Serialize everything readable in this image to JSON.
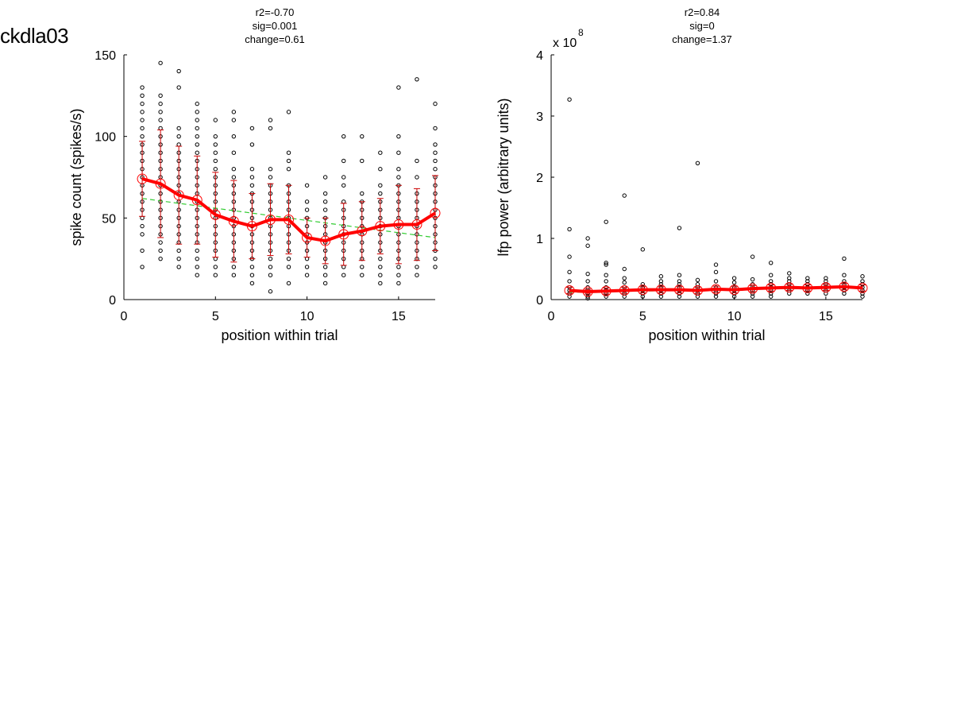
{
  "page": {
    "title": "ckdla03"
  },
  "chart_data": [
    {
      "type": "scatter",
      "stats": [
        "r2=-0.70",
        "sig=0.001",
        "change=0.61"
      ],
      "xlabel": "position within trial",
      "ylabel": "spike count (spikes/s)",
      "xlim": [
        0,
        17
      ],
      "ylim": [
        0,
        150
      ],
      "xticks": [
        0,
        5,
        10,
        15
      ],
      "yticks": [
        0,
        50,
        100,
        150
      ],
      "y_exponent_label": "",
      "y_exponent": "",
      "colors": {
        "points": "#000000",
        "mean": "#ff0000",
        "errorbar": "#cc0000",
        "fit": "#33cc33"
      },
      "points": [
        {
          "x": 1,
          "y": [
            20,
            30,
            40,
            45,
            50,
            55,
            60,
            65,
            70,
            75,
            80,
            85,
            90,
            95,
            100,
            105,
            110,
            115,
            120,
            125,
            130
          ]
        },
        {
          "x": 2,
          "y": [
            25,
            30,
            35,
            40,
            45,
            50,
            55,
            60,
            65,
            70,
            75,
            80,
            85,
            90,
            95,
            100,
            105,
            110,
            115,
            120,
            125,
            145
          ]
        },
        {
          "x": 3,
          "y": [
            20,
            25,
            30,
            35,
            40,
            45,
            50,
            55,
            60,
            65,
            70,
            75,
            80,
            85,
            90,
            95,
            100,
            105,
            130,
            140
          ]
        },
        {
          "x": 4,
          "y": [
            15,
            20,
            25,
            30,
            35,
            40,
            45,
            50,
            55,
            60,
            65,
            70,
            75,
            80,
            85,
            90,
            95,
            100,
            105,
            110,
            115,
            120
          ]
        },
        {
          "x": 5,
          "y": [
            15,
            20,
            25,
            30,
            35,
            40,
            45,
            50,
            55,
            60,
            65,
            70,
            75,
            80,
            85,
            90,
            95,
            100,
            110
          ]
        },
        {
          "x": 6,
          "y": [
            15,
            20,
            25,
            30,
            35,
            40,
            45,
            50,
            55,
            60,
            65,
            70,
            75,
            80,
            90,
            100,
            110,
            115
          ]
        },
        {
          "x": 7,
          "y": [
            10,
            15,
            20,
            25,
            30,
            35,
            40,
            45,
            50,
            55,
            60,
            65,
            70,
            75,
            80,
            95,
            105
          ]
        },
        {
          "x": 8,
          "y": [
            5,
            15,
            20,
            25,
            30,
            35,
            40,
            45,
            50,
            55,
            60,
            65,
            70,
            75,
            80,
            105,
            110
          ]
        },
        {
          "x": 9,
          "y": [
            10,
            20,
            25,
            30,
            35,
            40,
            45,
            50,
            55,
            60,
            65,
            70,
            80,
            85,
            90,
            115
          ]
        },
        {
          "x": 10,
          "y": [
            15,
            20,
            25,
            30,
            35,
            40,
            45,
            50,
            55,
            60,
            70
          ]
        },
        {
          "x": 11,
          "y": [
            10,
            15,
            20,
            25,
            30,
            35,
            40,
            45,
            50,
            55,
            60,
            65,
            75
          ]
        },
        {
          "x": 12,
          "y": [
            15,
            20,
            25,
            30,
            35,
            40,
            45,
            50,
            55,
            60,
            70,
            75,
            85,
            100
          ]
        },
        {
          "x": 13,
          "y": [
            15,
            20,
            25,
            30,
            35,
            40,
            45,
            50,
            55,
            60,
            65,
            85,
            100
          ]
        },
        {
          "x": 14,
          "y": [
            10,
            15,
            20,
            25,
            30,
            35,
            40,
            45,
            50,
            55,
            60,
            65,
            70,
            80,
            90
          ]
        },
        {
          "x": 15,
          "y": [
            10,
            15,
            20,
            25,
            30,
            35,
            40,
            45,
            50,
            55,
            60,
            65,
            70,
            75,
            80,
            90,
            100,
            130
          ]
        },
        {
          "x": 16,
          "y": [
            15,
            20,
            25,
            30,
            35,
            40,
            45,
            50,
            55,
            60,
            65,
            75,
            85,
            135
          ]
        },
        {
          "x": 17,
          "y": [
            20,
            25,
            30,
            35,
            40,
            45,
            50,
            55,
            60,
            65,
            70,
            75,
            80,
            85,
            90,
            95,
            105,
            120
          ]
        }
      ],
      "mean": {
        "x": [
          1,
          2,
          3,
          4,
          5,
          6,
          7,
          8,
          9,
          10,
          11,
          12,
          13,
          14,
          15,
          16,
          17
        ],
        "y": [
          74,
          71,
          64,
          61,
          52,
          48,
          45,
          49,
          49,
          38,
          36,
          40,
          42,
          45,
          46,
          46,
          53
        ],
        "sd": [
          23,
          33,
          30,
          27,
          26,
          25,
          20,
          22,
          21,
          12,
          14,
          19,
          18,
          17,
          24,
          22,
          23
        ]
      },
      "fit": {
        "x": [
          1,
          17
        ],
        "y": [
          62,
          38
        ]
      }
    },
    {
      "type": "scatter",
      "stats": [
        "r2=0.84",
        "sig=0",
        "change=1.37"
      ],
      "xlabel": "position within trial",
      "ylabel": "lfp power (arbitrary units)",
      "xlim": [
        0,
        17
      ],
      "ylim": [
        0,
        4
      ],
      "xticks": [
        0,
        5,
        10,
        15
      ],
      "yticks": [
        0,
        1,
        2,
        3,
        4
      ],
      "y_exponent_label": "x 10",
      "y_exponent": "8",
      "colors": {
        "points": "#000000",
        "mean": "#ff0000",
        "errorbar": "#cc0000",
        "fit": "#33cc33"
      },
      "points": [
        {
          "x": 1,
          "y": [
            0.05,
            0.1,
            0.15,
            0.2,
            0.3,
            0.45,
            0.7,
            1.15,
            3.27
          ]
        },
        {
          "x": 2,
          "y": [
            0.02,
            0.05,
            0.1,
            0.15,
            0.2,
            0.3,
            0.42,
            0.88,
            1.0
          ]
        },
        {
          "x": 3,
          "y": [
            0.05,
            0.1,
            0.15,
            0.2,
            0.3,
            0.4,
            0.57,
            0.6,
            1.27
          ]
        },
        {
          "x": 4,
          "y": [
            0.05,
            0.1,
            0.15,
            0.2,
            0.28,
            0.35,
            0.5,
            1.7
          ]
        },
        {
          "x": 5,
          "y": [
            0.05,
            0.1,
            0.15,
            0.2,
            0.25,
            0.82
          ]
        },
        {
          "x": 6,
          "y": [
            0.05,
            0.1,
            0.15,
            0.2,
            0.25,
            0.3,
            0.38
          ]
        },
        {
          "x": 7,
          "y": [
            0.05,
            0.1,
            0.15,
            0.2,
            0.25,
            0.3,
            0.4,
            1.17
          ]
        },
        {
          "x": 8,
          "y": [
            0.05,
            0.1,
            0.15,
            0.2,
            0.25,
            0.32,
            2.23
          ]
        },
        {
          "x": 9,
          "y": [
            0.05,
            0.1,
            0.15,
            0.2,
            0.3,
            0.45,
            0.57
          ]
        },
        {
          "x": 10,
          "y": [
            0.05,
            0.1,
            0.15,
            0.2,
            0.28,
            0.35
          ]
        },
        {
          "x": 11,
          "y": [
            0.05,
            0.1,
            0.15,
            0.2,
            0.25,
            0.33,
            0.7
          ]
        },
        {
          "x": 12,
          "y": [
            0.05,
            0.1,
            0.15,
            0.2,
            0.25,
            0.3,
            0.4,
            0.6
          ]
        },
        {
          "x": 13,
          "y": [
            0.1,
            0.15,
            0.2,
            0.25,
            0.3,
            0.35,
            0.43
          ]
        },
        {
          "x": 14,
          "y": [
            0.1,
            0.15,
            0.2,
            0.25,
            0.3,
            0.35
          ]
        },
        {
          "x": 15,
          "y": [
            0.1,
            0.15,
            0.2,
            0.25,
            0.3,
            0.35
          ]
        },
        {
          "x": 16,
          "y": [
            0.1,
            0.15,
            0.2,
            0.25,
            0.3,
            0.4,
            0.67
          ]
        },
        {
          "x": 17,
          "y": [
            0.05,
            0.1,
            0.15,
            0.2,
            0.25,
            0.3,
            0.38
          ]
        }
      ],
      "mean": {
        "x": [
          1,
          2,
          3,
          4,
          5,
          6,
          7,
          8,
          9,
          10,
          11,
          12,
          13,
          14,
          15,
          16,
          17
        ],
        "y": [
          0.15,
          0.13,
          0.14,
          0.15,
          0.16,
          0.16,
          0.16,
          0.15,
          0.17,
          0.16,
          0.18,
          0.19,
          0.2,
          0.19,
          0.2,
          0.21,
          0.19
        ],
        "sd": [
          0.05,
          0.04,
          0.05,
          0.05,
          0.05,
          0.05,
          0.05,
          0.05,
          0.05,
          0.05,
          0.05,
          0.05,
          0.05,
          0.05,
          0.05,
          0.05,
          0.05
        ]
      },
      "fit": {
        "x": [
          1,
          17
        ],
        "y": [
          0.12,
          0.2
        ]
      }
    }
  ]
}
